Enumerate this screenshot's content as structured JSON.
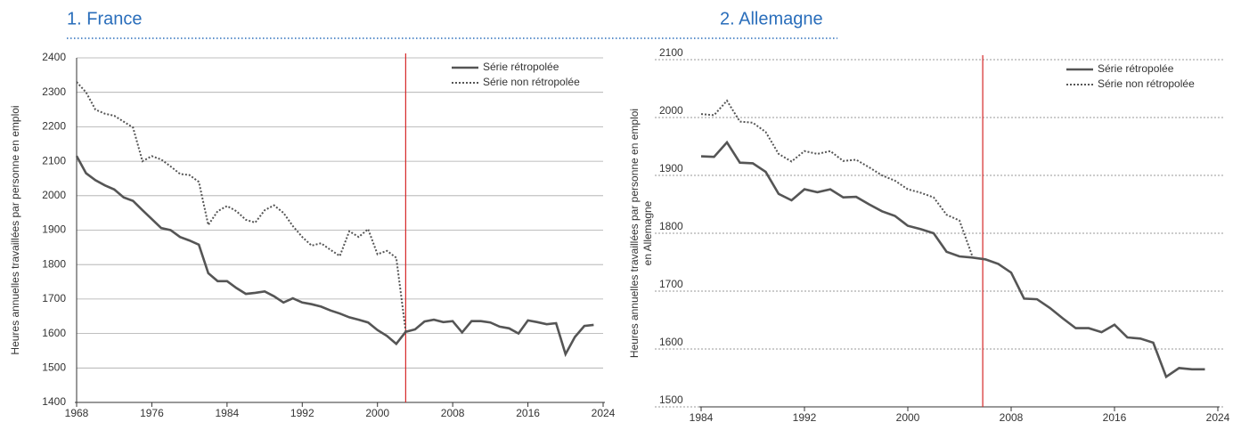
{
  "chart_data": [
    {
      "type": "line",
      "title": "1. France",
      "ylabel": "Heures annuelles travaillées par personne en emploi",
      "x": [
        1968,
        1969,
        1970,
        1971,
        1972,
        1973,
        1974,
        1975,
        1976,
        1977,
        1978,
        1979,
        1980,
        1981,
        1982,
        1983,
        1984,
        1985,
        1986,
        1987,
        1988,
        1989,
        1990,
        1991,
        1992,
        1993,
        1994,
        1995,
        1996,
        1997,
        1998,
        1999,
        2000,
        2001,
        2002,
        2003,
        2004,
        2005,
        2006,
        2007,
        2008,
        2009,
        2010,
        2011,
        2012,
        2013,
        2014,
        2015,
        2016,
        2017,
        2018,
        2019,
        2020,
        2021,
        2022,
        2023
      ],
      "series": [
        {
          "name": "Série rétropolée",
          "color": "#555555",
          "style": "solid",
          "values": [
            2115,
            2065,
            2045,
            2030,
            2018,
            1995,
            1985,
            1958,
            1932,
            1906,
            1900,
            1880,
            1870,
            1858,
            1775,
            1752,
            1752,
            1732,
            1715,
            1718,
            1722,
            1708,
            1690,
            1702,
            1690,
            1685,
            1678,
            1667,
            1658,
            1647,
            1640,
            1632,
            1610,
            1593,
            1570,
            1605,
            1612,
            1635,
            1640,
            1633,
            1636,
            1603,
            1636,
            1636,
            1632,
            1620,
            1615,
            1600,
            1638,
            1633,
            1627,
            1630,
            1540,
            1590,
            1622,
            1625
          ]
        },
        {
          "name": "Série non rétropolée",
          "color": "#555555",
          "style": "dotted",
          "values": [
            2330,
            2300,
            2250,
            2238,
            2232,
            2215,
            2198,
            2100,
            2115,
            2105,
            2085,
            2063,
            2060,
            2040,
            1915,
            1955,
            1970,
            1955,
            1930,
            1922,
            1958,
            1972,
            1950,
            1912,
            1880,
            1855,
            1862,
            1843,
            1825,
            1897,
            1880,
            1903,
            1830,
            1840,
            1820,
            1607,
            null,
            null,
            null,
            null,
            null,
            null,
            null,
            null,
            null,
            null,
            null,
            null,
            null,
            null,
            null,
            null,
            null,
            null,
            null,
            null
          ]
        }
      ],
      "xlim": [
        1968,
        2024
      ],
      "xticks": [
        1968,
        1976,
        1984,
        1992,
        2000,
        2008,
        2016,
        2024
      ],
      "ylim": [
        1400,
        2400
      ],
      "yticks": [
        1400,
        1500,
        1600,
        1700,
        1800,
        1900,
        2000,
        2100,
        2200,
        2300,
        2400
      ],
      "grid": "solid",
      "vline": 2003,
      "vline_color": "#d62728",
      "legend": "upper right"
    },
    {
      "type": "line",
      "title": "2. Allemagne",
      "ylabel": [
        "Heures annuelles travaillées par personne en emploi",
        "en Allemagne"
      ],
      "x": [
        1984,
        1985,
        1986,
        1987,
        1988,
        1989,
        1990,
        1991,
        1992,
        1993,
        1994,
        1995,
        1996,
        1997,
        1998,
        1999,
        2000,
        2001,
        2002,
        2003,
        2004,
        2005,
        2006,
        2007,
        2008,
        2009,
        2010,
        2011,
        2012,
        2013,
        2014,
        2015,
        2016,
        2017,
        2018,
        2019,
        2020,
        2021,
        2022,
        2023
      ],
      "series": [
        {
          "name": "Série rétropolée",
          "color": "#555555",
          "style": "solid",
          "values": [
            1933,
            1932,
            1957,
            1922,
            1921,
            1906,
            1868,
            1857,
            1876,
            1871,
            1876,
            1862,
            1863,
            1850,
            1838,
            1830,
            1813,
            1807,
            1800,
            1768,
            1760,
            1758,
            1755,
            1747,
            1732,
            1687,
            1686,
            1671,
            1653,
            1636,
            1636,
            1629,
            1642,
            1620,
            1618,
            1611,
            1552,
            1567,
            1565,
            1565
          ]
        },
        {
          "name": "Série non rétropolée",
          "color": "#555555",
          "style": "dotted",
          "values": [
            2006,
            2004,
            2029,
            1993,
            1991,
            1975,
            1937,
            1924,
            1942,
            1937,
            1942,
            1925,
            1927,
            1914,
            1900,
            1891,
            1876,
            1870,
            1862,
            1832,
            1822,
            1760,
            null,
            null,
            null,
            null,
            null,
            null,
            null,
            null,
            null,
            null,
            null,
            null,
            null,
            null,
            null,
            null,
            null,
            null
          ]
        }
      ],
      "xlim": [
        1984,
        2024
      ],
      "xticks": [
        1984,
        1992,
        2000,
        2008,
        2016,
        2024
      ],
      "ylim": [
        1500,
        2100
      ],
      "yticks": [
        1500,
        1600,
        1700,
        1800,
        1900,
        2000,
        2100
      ],
      "grid": "dashed",
      "vline": 2005.8,
      "vline_color": "#d62728",
      "legend": "upper right"
    }
  ]
}
